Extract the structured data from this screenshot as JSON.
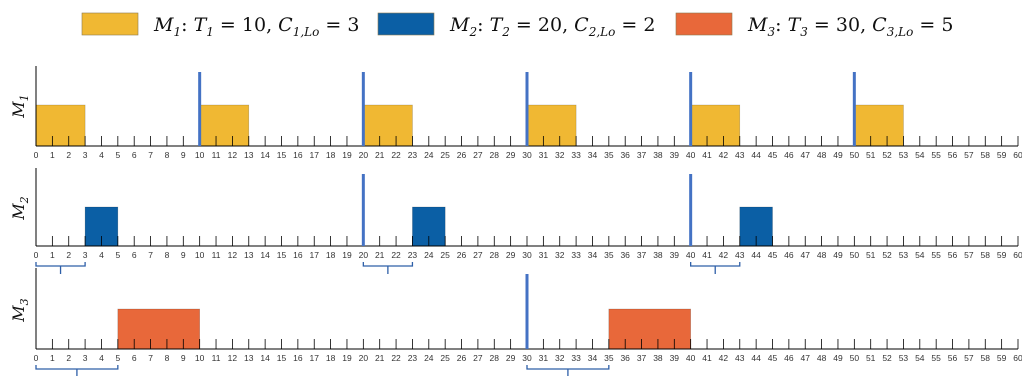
{
  "chart_data": {
    "type": "gantt-timeline",
    "x_range": [
      0,
      60
    ],
    "x_ticks": [
      "0",
      "1",
      "2",
      "3",
      "4",
      "5",
      "6",
      "7",
      "8",
      "9",
      "10",
      "11",
      "12",
      "13",
      "14",
      "15",
      "16",
      "17",
      "18",
      "19",
      "20",
      "21",
      "22",
      "23",
      "24",
      "25",
      "26",
      "27",
      "28",
      "29",
      "30",
      "31",
      "32",
      "33",
      "34",
      "35",
      "36",
      "37",
      "38",
      "39",
      "40",
      "41",
      "42",
      "43",
      "44",
      "45",
      "46",
      "47",
      "48",
      "49",
      "50",
      "51",
      "52",
      "53",
      "54",
      "55",
      "56",
      "57",
      "58",
      "59",
      "60"
    ],
    "legend": [
      {
        "task": "M",
        "idx": "1",
        "T": "T",
        "Tidx": "1",
        "period": "10",
        "C": "C",
        "Cidx": "1,Lo",
        "wcet": "3",
        "color": "#F0B833"
      },
      {
        "task": "M",
        "idx": "2",
        "T": "T",
        "Tidx": "2",
        "period": "20",
        "C": "C",
        "Cidx": "2,Lo",
        "wcet": "2",
        "color": "#0B5FA5"
      },
      {
        "task": "M",
        "idx": "3",
        "T": "T",
        "Tidx": "3",
        "period": "30",
        "C": "C",
        "Cidx": "3,Lo",
        "wcet": "5",
        "color": "#E8683A"
      }
    ],
    "rows": [
      {
        "label": "M",
        "sub": "1",
        "color": "#F0B833",
        "blocks": [
          [
            0,
            3
          ],
          [
            10,
            13
          ],
          [
            20,
            23
          ],
          [
            30,
            33
          ],
          [
            40,
            43
          ],
          [
            50,
            53
          ]
        ],
        "releases": [
          10,
          20,
          30,
          40,
          50
        ],
        "braces": []
      },
      {
        "label": "M",
        "sub": "2",
        "color": "#0B5FA5",
        "blocks": [
          [
            3,
            5
          ],
          [
            23,
            25
          ],
          [
            43,
            45
          ]
        ],
        "releases": [
          20,
          40
        ],
        "braces": [
          [
            0,
            3
          ],
          [
            20,
            23
          ],
          [
            40,
            43
          ]
        ]
      },
      {
        "label": "M",
        "sub": "3",
        "color": "#E8683A",
        "blocks": [
          [
            5,
            10
          ],
          [
            35,
            40
          ]
        ],
        "releases": [
          30
        ],
        "braces": [
          [
            0,
            5
          ],
          [
            30,
            35
          ]
        ]
      }
    ],
    "release_color": "#4472C4",
    "brace_color": "#2E5FA8"
  }
}
